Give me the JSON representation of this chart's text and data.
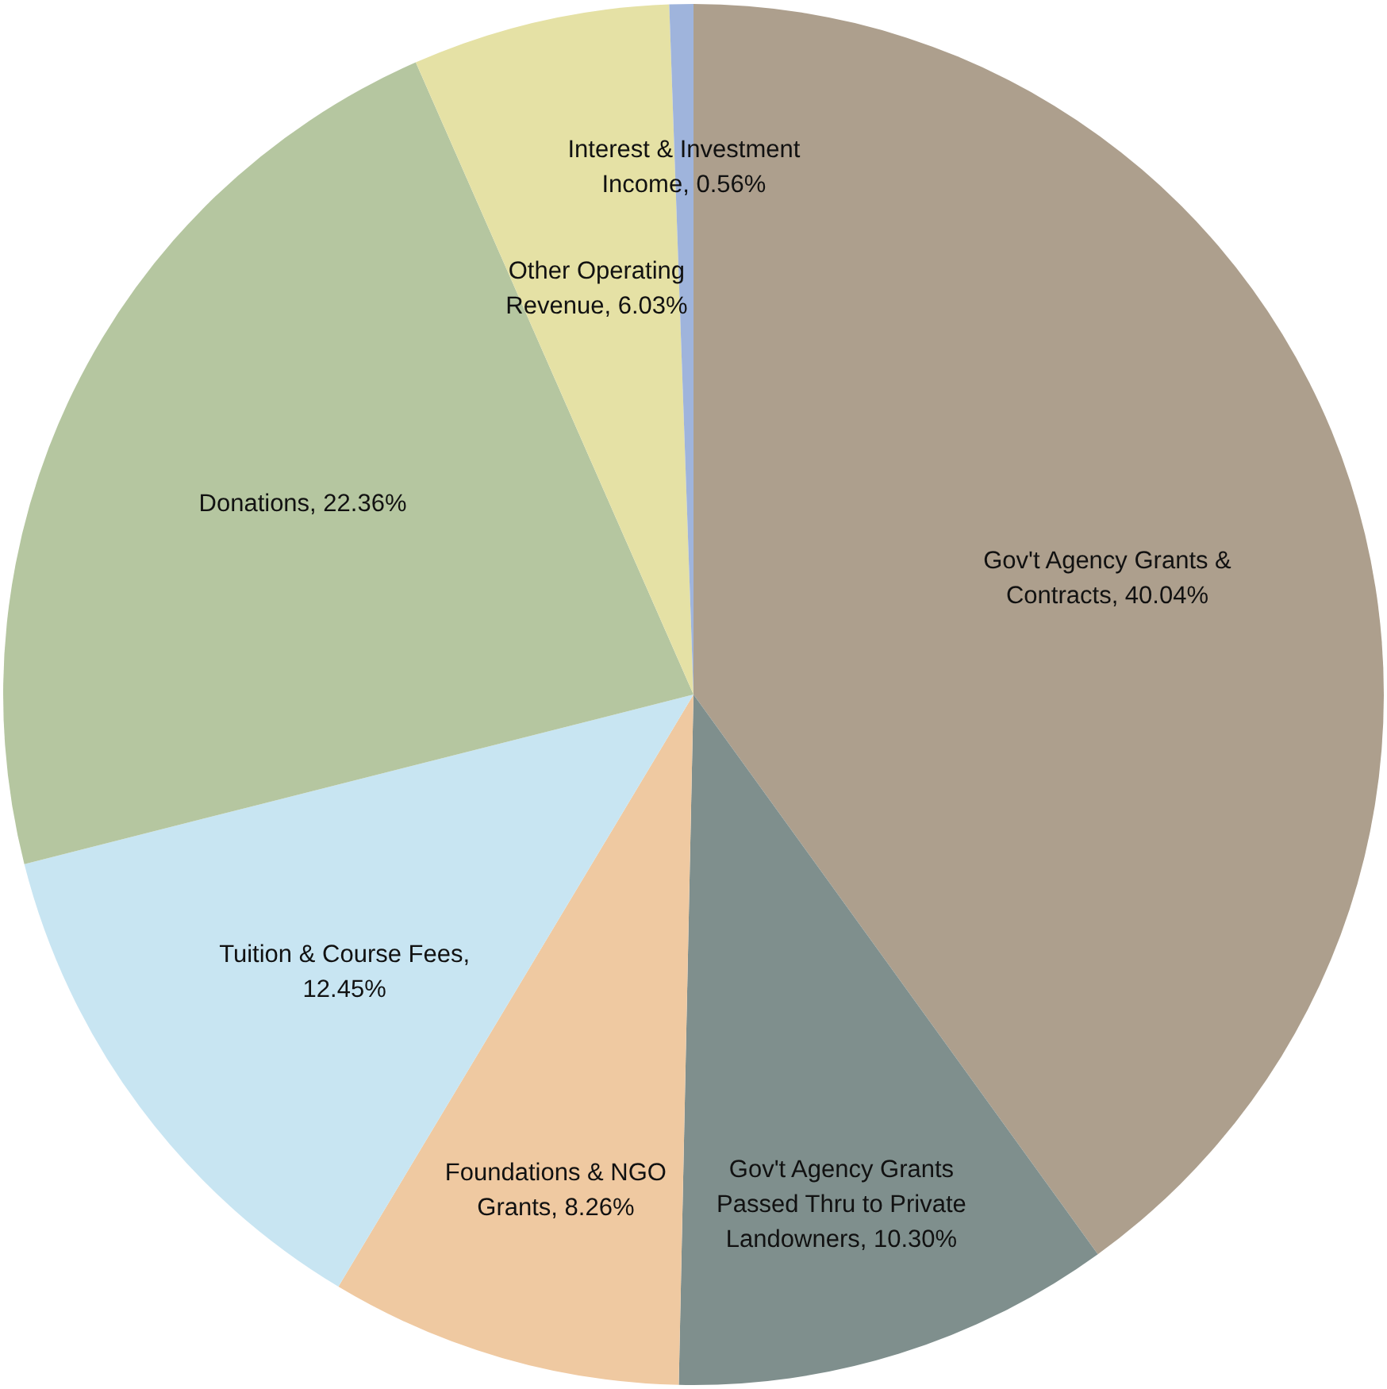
{
  "chart_data": {
    "type": "pie",
    "categories": [
      "Gov't Agency Grants & Contracts, 40.04%",
      "Gov't Agency Grants Passed Thru to Private Landowners, 10.30%",
      "Foundations & NGO Grants, 8.26%",
      "Tuition & Course Fees, 12.45%",
      "Donations, 22.36%",
      "Other Operating Revenue, 6.03%",
      "Interest & Investment Income, 0.56%"
    ],
    "values": [
      40.04,
      10.3,
      8.26,
      12.45,
      22.36,
      6.03,
      0.56
    ],
    "colors": [
      "#ad9f8d",
      "#7f8f8d",
      "#efc9a1",
      "#c8e5f2",
      "#b5c6a0",
      "#e5e1a5",
      "#9fb4dc"
    ]
  }
}
